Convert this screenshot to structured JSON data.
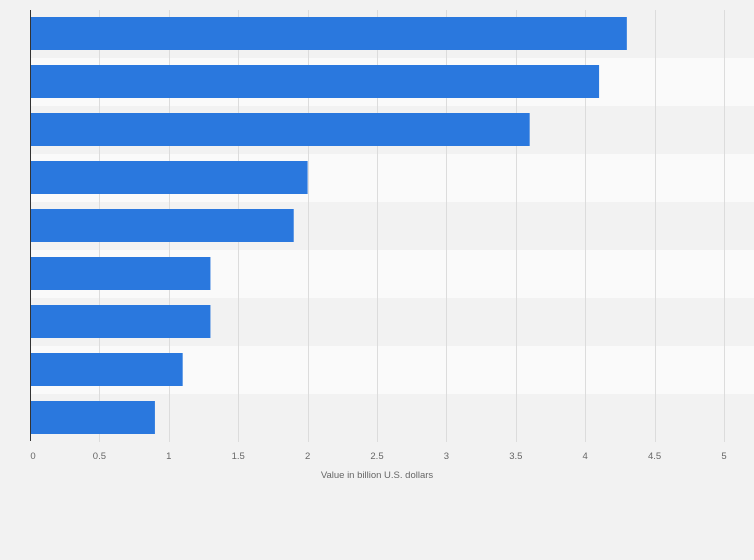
{
  "chart_data": {
    "type": "bar",
    "orientation": "horizontal",
    "categories": [
      "",
      "",
      "",
      "",
      "",
      "",
      "",
      "",
      ""
    ],
    "values": [
      4.3,
      4.1,
      3.6,
      2.0,
      1.9,
      1.3,
      1.3,
      1.1,
      0.9
    ],
    "title": "",
    "xlabel": "Value in billion U.S. dollars",
    "ylabel": "",
    "xlim": [
      0,
      5
    ],
    "xticks": [
      "0",
      "0.5",
      "1",
      "1.5",
      "2",
      "2.5",
      "3",
      "3.5",
      "4",
      "4.5",
      "5"
    ],
    "grid": true,
    "bar_color": "#2a78de",
    "band_colors": [
      "#f2f2f2",
      "#fafafa"
    ]
  }
}
